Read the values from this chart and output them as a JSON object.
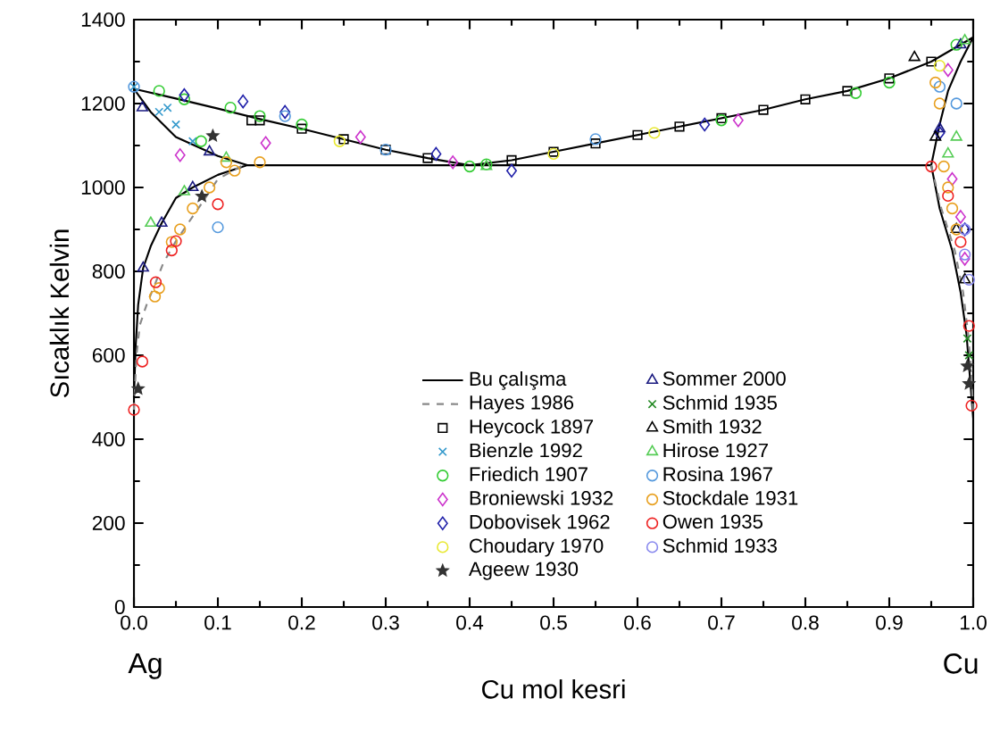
{
  "chart_data": {
    "type": "scatter",
    "xlabel": "Cu mol kesri",
    "ylabel": "Sıcaklık Kelvin",
    "xlim": [
      0,
      1
    ],
    "ylim": [
      0,
      1400
    ],
    "xticks": [
      {
        "value": 0,
        "label": "0.0"
      },
      0.1,
      0.2,
      0.3,
      0.4,
      0.5,
      0.6,
      0.7,
      0.8,
      0.9,
      {
        "value": 1,
        "label": "1.0"
      }
    ],
    "yticks": [
      0,
      200,
      400,
      600,
      800,
      1000,
      1200,
      1400
    ],
    "legend": "bottom",
    "grid": false,
    "annotations": [
      "Ag",
      "Cu"
    ],
    "series": [
      {
        "name": "Bu çalışma",
        "type": "line",
        "line_style": "solid",
        "marker": "none",
        "color": "#000000",
        "x": [
          0,
          0.05,
          0.1,
          0.15,
          0.2,
          0.25,
          0.3,
          0.35,
          0.4,
          0.45,
          0.5,
          0.55,
          0.6,
          0.65,
          0.7,
          0.75,
          0.8,
          0.85,
          0.9,
          0.95,
          1.0,
          null,
          0.0,
          0.002,
          0.005,
          0.011,
          0.02,
          0.033,
          0.05,
          0.07,
          0.1,
          0.135,
          0.95,
          0.96,
          0.975,
          0.985,
          0.992,
          0.996,
          1.0,
          null,
          0,
          0.02,
          0.05,
          0.1,
          0.135,
          null,
          0.95,
          0.96,
          0.97,
          0.985,
          1.0
        ],
        "values": [
          1235,
          1212,
          1188,
          1163,
          1140,
          1115,
          1090,
          1070,
          1053,
          1065,
          1085,
          1105,
          1125,
          1145,
          1165,
          1185,
          1210,
          1230,
          1260,
          1300,
          1358,
          null,
          500,
          620,
          720,
          808,
          860,
          915,
          975,
          1000,
          1030,
          1053,
          1053,
          950,
          850,
          750,
          650,
          550,
          450,
          null,
          1235,
          1180,
          1120,
          1075,
          1053,
          null,
          1053,
          1150,
          1230,
          1300,
          1358
        ]
      },
      {
        "name": "Hayes 1986",
        "type": "line",
        "line_style": "dashed",
        "marker": "none",
        "color": "#888888",
        "x": [
          0.0,
          0.003,
          0.007,
          0.015,
          0.026,
          0.035,
          0.05,
          0.08,
          0.1,
          0.13,
          null,
          0.95,
          0.962,
          0.978,
          0.988,
          0.994,
          0.998,
          1.0
        ],
        "values": [
          470,
          600,
          672,
          720,
          774,
          820,
          872,
          960,
          1020,
          1053,
          null,
          1053,
          950,
          850,
          750,
          650,
          550,
          460
        ]
      },
      {
        "name": "Heycock 1897",
        "marker": "square",
        "color": "#000000",
        "x": [
          0.14,
          0.15,
          0.2,
          0.25,
          0.3,
          0.35,
          0.45,
          0.5,
          0.55,
          0.6,
          0.65,
          0.7,
          0.75,
          0.8,
          0.85,
          0.9,
          0.95
        ],
        "values": [
          1160,
          1160,
          1140,
          1115,
          1090,
          1070,
          1065,
          1085,
          1105,
          1125,
          1145,
          1165,
          1185,
          1210,
          1230,
          1260,
          1300
        ]
      },
      {
        "name": "Bienzle 1992",
        "marker": "cross",
        "color": "#3399cc",
        "x": [
          0.0,
          0.03,
          0.04,
          0.05,
          0.07
        ],
        "values": [
          1240,
          1180,
          1190,
          1150,
          1110
        ]
      },
      {
        "name": "Friedich 1907",
        "marker": "circle",
        "color": "#33cc33",
        "x": [
          0.03,
          0.06,
          0.08,
          0.115,
          0.15,
          0.2,
          0.4,
          0.42,
          0.7,
          0.86,
          0.9,
          0.98
        ],
        "values": [
          1230,
          1210,
          1110,
          1190,
          1170,
          1150,
          1050,
          1055,
          1160,
          1225,
          1250,
          1340
        ]
      },
      {
        "name": "Broniewski 1932",
        "marker": "diamond",
        "color": "#cc33cc",
        "x": [
          0.055,
          0.157,
          0.27,
          0.38,
          0.72,
          0.975,
          0.97,
          0.985,
          0.99
        ],
        "values": [
          1077,
          1106,
          1120,
          1060,
          1160,
          1020,
          1280,
          930,
          830
        ]
      },
      {
        "name": "Dobovisek 1962",
        "marker": "diamond",
        "color": "#2222aa",
        "x": [
          0.06,
          0.13,
          0.18,
          0.36,
          0.45,
          0.68,
          0.96,
          0.99
        ],
        "values": [
          1220,
          1205,
          1180,
          1080,
          1040,
          1150,
          1130,
          900
        ]
      },
      {
        "name": "Choudary 1970",
        "marker": "circle",
        "color": "#e8e830",
        "x": [
          0.245,
          0.5,
          0.62,
          0.96
        ],
        "values": [
          1110,
          1080,
          1130,
          1290
        ]
      },
      {
        "name": "Ageew 1930",
        "marker": "star",
        "color": "#333333",
        "x": [
          0.005,
          0.081,
          0.094,
          0.993,
          0.995
        ],
        "values": [
          520,
          979,
          1123,
          574,
          532
        ]
      },
      {
        "name": "Sommer 2000",
        "marker": "triangle",
        "color": "#1a1a80",
        "x": [
          0.01,
          0.011,
          0.033,
          0.07,
          0.09,
          0.96,
          0.985
        ],
        "values": [
          1190,
          808,
          915,
          1000,
          1085,
          1140,
          1340
        ]
      },
      {
        "name": "Schmid 1935",
        "marker": "cross",
        "color": "#228822",
        "x": [
          0.993,
          0.995
        ],
        "values": [
          640,
          600
        ]
      },
      {
        "name": "Smith 1932",
        "marker": "triangle",
        "color": "#000000",
        "x": [
          0.93,
          0.955,
          0.98,
          0.99
        ],
        "values": [
          1310,
          1120,
          900,
          780
        ]
      },
      {
        "name": "Hirose 1927",
        "marker": "triangle",
        "color": "#55cc55",
        "x": [
          0.02,
          0.06,
          0.11,
          0.42,
          0.97,
          0.98,
          0.99
        ],
        "values": [
          915,
          990,
          1070,
          1050,
          1080,
          1120,
          1350
        ]
      },
      {
        "name": "Rosina 1967",
        "marker": "circle",
        "color": "#5599dd",
        "x": [
          0.0,
          0.1,
          0.18,
          0.3,
          0.55,
          0.96,
          0.98
        ],
        "values": [
          1240,
          905,
          1170,
          1090,
          1115,
          1240,
          1200
        ]
      },
      {
        "name": "Stockdale 1931",
        "marker": "circle",
        "color": "#e8a020",
        "x": [
          0.025,
          0.03,
          0.045,
          0.055,
          0.07,
          0.09,
          0.11,
          0.12,
          0.15,
          0.955,
          0.96,
          0.965,
          0.97,
          0.975,
          0.98
        ],
        "values": [
          740,
          760,
          870,
          900,
          950,
          1000,
          1060,
          1040,
          1060,
          1250,
          1200,
          1050,
          1000,
          950,
          900
        ]
      },
      {
        "name": "Owen 1935",
        "marker": "circle",
        "color": "#ee2222",
        "x": [
          0.0,
          0.01,
          0.026,
          0.045,
          0.05,
          0.1,
          0.95,
          0.97,
          0.985,
          0.995,
          0.998
        ],
        "values": [
          470,
          585,
          774,
          850,
          872,
          960,
          1050,
          980,
          870,
          670,
          480
        ]
      },
      {
        "name": "Schmid 1933",
        "marker": "circle",
        "color": "#8888ee",
        "x": [
          0.99,
          0.99,
          0.995
        ],
        "values": [
          900,
          840,
          780
        ]
      }
    ]
  }
}
